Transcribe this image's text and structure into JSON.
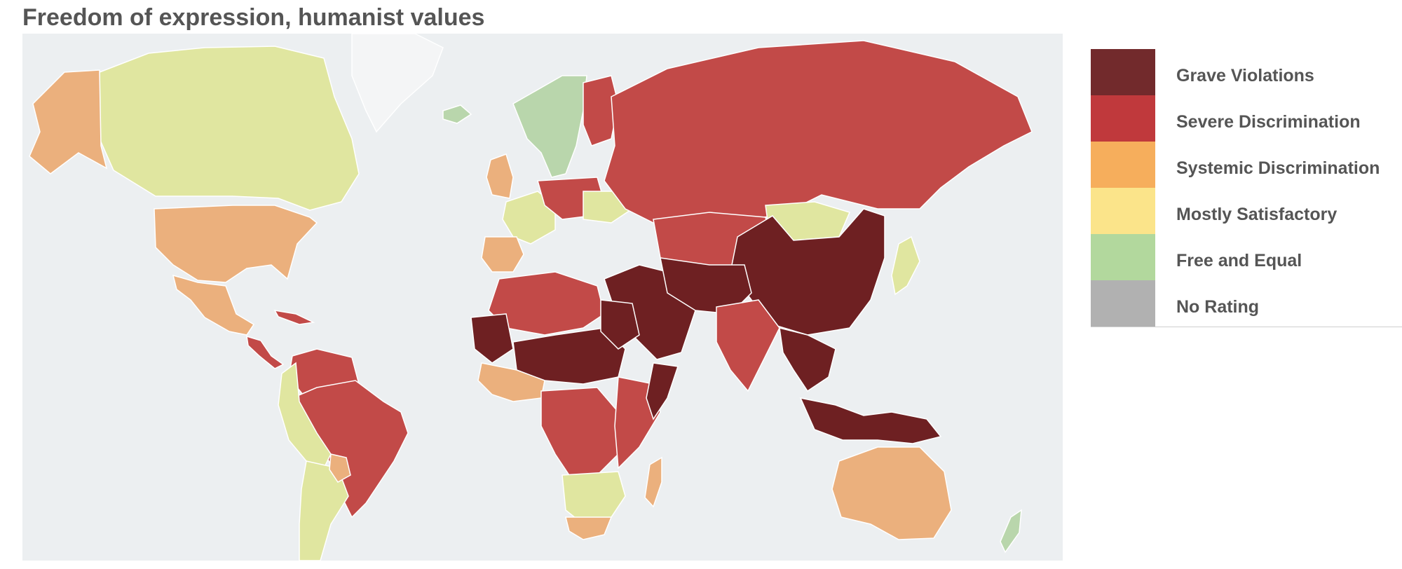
{
  "title": "Freedom of expression, humanist values",
  "legend": [
    {
      "label": "Grave Violations",
      "color": "#722a2c"
    },
    {
      "label": "Severe Discrimination",
      "color": "#c0393c"
    },
    {
      "label": "Systemic Discrimination",
      "color": "#f6ae5c"
    },
    {
      "label": "Mostly Satisfactory",
      "color": "#fbe48a"
    },
    {
      "label": "Free and Equal",
      "color": "#b2d89d"
    },
    {
      "label": "No Rating",
      "color": "#b1b1b1"
    }
  ],
  "map_colors": {
    "ocean": "#eceff1",
    "land_unrated": "#f4f5f6",
    "grave": "#6e2022",
    "severe": "#c24a48",
    "systemic": "#ebb07d",
    "satisfactory": "#e0e6a0",
    "free": "#b9d6ac"
  },
  "regions": [
    {
      "name": "greenland",
      "rating": "unrated"
    },
    {
      "name": "canada",
      "rating": "satisfactory"
    },
    {
      "name": "alaska",
      "rating": "systemic"
    },
    {
      "name": "usa",
      "rating": "systemic"
    },
    {
      "name": "mexico",
      "rating": "systemic"
    },
    {
      "name": "central-america",
      "rating": "severe"
    },
    {
      "name": "cuba",
      "rating": "severe"
    },
    {
      "name": "venezuela-colombia",
      "rating": "severe"
    },
    {
      "name": "brazil",
      "rating": "severe"
    },
    {
      "name": "andes",
      "rating": "satisfactory"
    },
    {
      "name": "southern-cone",
      "rating": "satisfactory"
    },
    {
      "name": "paraguay",
      "rating": "systemic"
    },
    {
      "name": "iceland",
      "rating": "free"
    },
    {
      "name": "scandinavia",
      "rating": "free"
    },
    {
      "name": "finland",
      "rating": "severe"
    },
    {
      "name": "uk",
      "rating": "systemic"
    },
    {
      "name": "western-europe",
      "rating": "satisfactory"
    },
    {
      "name": "iberia",
      "rating": "systemic"
    },
    {
      "name": "central-europe",
      "rating": "severe"
    },
    {
      "name": "ukraine",
      "rating": "satisfactory"
    },
    {
      "name": "russia",
      "rating": "severe"
    },
    {
      "name": "central-asia",
      "rating": "severe"
    },
    {
      "name": "mongolia",
      "rating": "satisfactory"
    },
    {
      "name": "china",
      "rating": "grave"
    },
    {
      "name": "japan",
      "rating": "satisfactory"
    },
    {
      "name": "middle-east",
      "rating": "grave"
    },
    {
      "name": "iran-afghanistan",
      "rating": "grave"
    },
    {
      "name": "india",
      "rating": "severe"
    },
    {
      "name": "southeast-asia",
      "rating": "grave"
    },
    {
      "name": "indonesia",
      "rating": "grave"
    },
    {
      "name": "north-africa",
      "rating": "severe"
    },
    {
      "name": "western-sahara",
      "rating": "grave"
    },
    {
      "name": "sahel",
      "rating": "grave"
    },
    {
      "name": "egypt",
      "rating": "grave"
    },
    {
      "name": "west-africa",
      "rating": "systemic"
    },
    {
      "name": "central-africa",
      "rating": "severe"
    },
    {
      "name": "east-africa",
      "rating": "severe"
    },
    {
      "name": "somalia",
      "rating": "grave"
    },
    {
      "name": "southern-africa",
      "rating": "satisfactory"
    },
    {
      "name": "south-africa",
      "rating": "systemic"
    },
    {
      "name": "madagascar",
      "rating": "systemic"
    },
    {
      "name": "australia",
      "rating": "systemic"
    },
    {
      "name": "new-zealand",
      "rating": "free"
    }
  ]
}
